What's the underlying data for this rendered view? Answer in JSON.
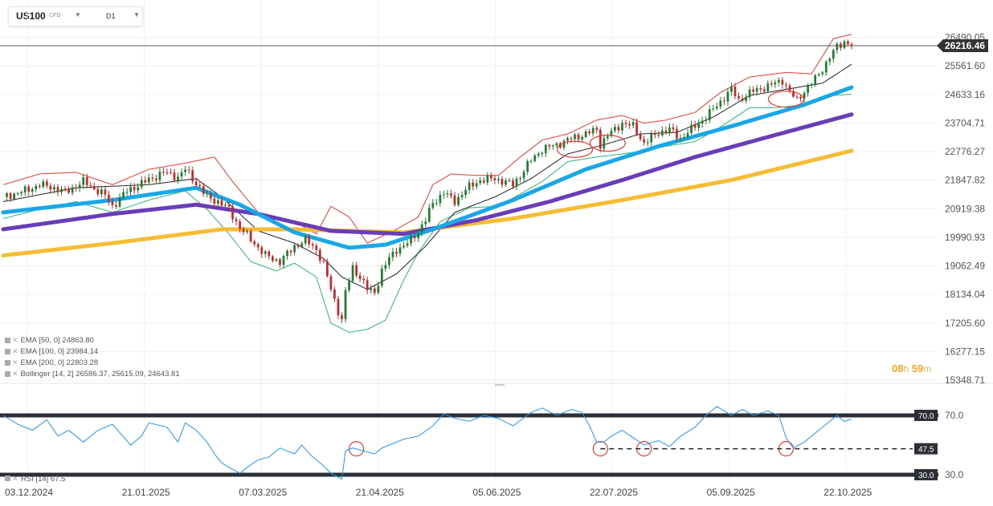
{
  "symbol": {
    "name": "US100",
    "type": "CFD",
    "timeframe": "D1"
  },
  "indicators": {
    "ema50": "EMA [50, 0] 24863.80",
    "ema100": "EMA [100, 0] 23984.14",
    "ema200": "EMA [200, 0] 22803.28",
    "bollinger": "Bollinger [14, 2] 26586.37, 25615.09, 24643.81",
    "rsi": "RSI [14] 67.5"
  },
  "countdown": {
    "hours": "08",
    "h": "h",
    "minutes": "59",
    "m": "m"
  },
  "colors": {
    "bullish": "#1e7d2e",
    "bearish": "#c62828",
    "ema50": "#1aa7e8",
    "ema100": "#6a3db8",
    "ema200": "#f6bd34",
    "bb_upper": "#e53935",
    "bb_lower": "#2bb673",
    "bb_mid": "#222222",
    "rsi": "#2196f3",
    "annotation": "#e53935",
    "price_tag": "#333333"
  },
  "chart_data": {
    "type": "candlestick",
    "xlabel": "",
    "ylabel": "",
    "ylim": [
      15348.71,
      27000
    ],
    "y_ticks": [
      "26490.05",
      "25561.60",
      "24633.16",
      "23704.71",
      "22776.27",
      "21847.82",
      "20919.38",
      "19990.93",
      "19062.49",
      "18134.04",
      "17205.60",
      "16277.15",
      "15348.71"
    ],
    "x_ticks": [
      "03.12.2024",
      "21.01.2025",
      "07.03.2025",
      "21.04.2025",
      "05.06.2025",
      "22.07.2025",
      "05.09.2025",
      "22.10.2025"
    ],
    "current_price": "26216.46",
    "close_path": [
      [
        0,
        21300
      ],
      [
        6,
        21500
      ],
      [
        10,
        21700
      ],
      [
        14,
        21600
      ],
      [
        17,
        21450
      ],
      [
        22,
        21800
      ],
      [
        28,
        21350
      ],
      [
        30,
        21000
      ],
      [
        34,
        21500
      ],
      [
        39,
        21800
      ],
      [
        44,
        22100
      ],
      [
        48,
        21950
      ],
      [
        50,
        22200
      ],
      [
        53,
        21750
      ],
      [
        56,
        21300
      ],
      [
        59,
        21150
      ],
      [
        62,
        20900
      ],
      [
        65,
        20300
      ],
      [
        69,
        19800
      ],
      [
        72,
        19400
      ],
      [
        76,
        19200
      ],
      [
        80,
        19700
      ],
      [
        83,
        19900
      ],
      [
        86,
        19600
      ],
      [
        88,
        19100
      ],
      [
        90,
        18300
      ],
      [
        92,
        17600
      ],
      [
        93,
        17300
      ],
      [
        94,
        18200
      ],
      [
        96,
        19000
      ],
      [
        98,
        18700
      ],
      [
        100,
        18300
      ],
      [
        102,
        18200
      ],
      [
        104,
        18900
      ],
      [
        106,
        19300
      ],
      [
        108,
        19600
      ],
      [
        110,
        19700
      ],
      [
        112,
        19900
      ],
      [
        114,
        20200
      ],
      [
        116,
        20550
      ],
      [
        118,
        21100
      ],
      [
        121,
        21450
      ],
      [
        124,
        21150
      ],
      [
        127,
        21550
      ],
      [
        131,
        21850
      ],
      [
        135,
        21900
      ],
      [
        140,
        21700
      ],
      [
        142,
        22000
      ],
      [
        145,
        22500
      ],
      [
        148,
        22850
      ],
      [
        152,
        23000
      ],
      [
        156,
        23200
      ],
      [
        160,
        23350
      ],
      [
        163,
        23500
      ],
      [
        164,
        23000
      ],
      [
        166,
        23300
      ],
      [
        170,
        23700
      ],
      [
        173,
        23600
      ],
      [
        176,
        23050
      ],
      [
        180,
        23400
      ],
      [
        183,
        23500
      ],
      [
        186,
        23200
      ],
      [
        190,
        23600
      ],
      [
        193,
        23900
      ],
      [
        197,
        24400
      ],
      [
        200,
        24800
      ],
      [
        202,
        24450
      ],
      [
        206,
        24750
      ],
      [
        210,
        24900
      ],
      [
        214,
        25100
      ],
      [
        216,
        24700
      ],
      [
        218,
        24450
      ],
      [
        220,
        24750
      ],
      [
        222,
        25000
      ],
      [
        224,
        25300
      ],
      [
        226,
        25650
      ],
      [
        229,
        26200
      ],
      [
        231,
        26350
      ],
      [
        233,
        26216
      ]
    ],
    "ema50_path": [
      [
        0,
        20800
      ],
      [
        30,
        21200
      ],
      [
        53,
        21600
      ],
      [
        65,
        21050
      ],
      [
        80,
        20150
      ],
      [
        95,
        19650
      ],
      [
        105,
        19750
      ],
      [
        118,
        20250
      ],
      [
        140,
        21200
      ],
      [
        160,
        22200
      ],
      [
        180,
        22950
      ],
      [
        200,
        23600
      ],
      [
        220,
        24300
      ],
      [
        233,
        24864
      ]
    ],
    "ema100_path": [
      [
        0,
        20250
      ],
      [
        30,
        20750
      ],
      [
        53,
        21050
      ],
      [
        70,
        20750
      ],
      [
        90,
        20200
      ],
      [
        110,
        20100
      ],
      [
        130,
        20550
      ],
      [
        150,
        21150
      ],
      [
        170,
        21850
      ],
      [
        190,
        22600
      ],
      [
        210,
        23250
      ],
      [
        233,
        23984
      ]
    ],
    "ema200_path": [
      [
        0,
        19400
      ],
      [
        30,
        19800
      ],
      [
        60,
        20250
      ],
      [
        80,
        20250
      ],
      [
        110,
        20150
      ],
      [
        140,
        20600
      ],
      [
        170,
        21200
      ],
      [
        200,
        21850
      ],
      [
        233,
        22803
      ]
    ],
    "bb_upper_path": [
      [
        0,
        21700
      ],
      [
        10,
        22050
      ],
      [
        20,
        22100
      ],
      [
        30,
        21700
      ],
      [
        40,
        22200
      ],
      [
        50,
        22400
      ],
      [
        58,
        22600
      ],
      [
        63,
        21800
      ],
      [
        70,
        20800
      ],
      [
        80,
        20500
      ],
      [
        86,
        20100
      ],
      [
        90,
        21000
      ],
      [
        95,
        20650
      ],
      [
        100,
        19800
      ],
      [
        108,
        20250
      ],
      [
        114,
        20650
      ],
      [
        118,
        21700
      ],
      [
        123,
        22050
      ],
      [
        130,
        22000
      ],
      [
        136,
        22000
      ],
      [
        142,
        22600
      ],
      [
        148,
        23150
      ],
      [
        155,
        23350
      ],
      [
        163,
        23800
      ],
      [
        170,
        23950
      ],
      [
        176,
        23700
      ],
      [
        182,
        23800
      ],
      [
        190,
        24050
      ],
      [
        197,
        24700
      ],
      [
        205,
        25200
      ],
      [
        215,
        25350
      ],
      [
        222,
        25300
      ],
      [
        228,
        26450
      ],
      [
        233,
        26586
      ]
    ],
    "bb_lower_path": [
      [
        0,
        20600
      ],
      [
        10,
        20900
      ],
      [
        20,
        21150
      ],
      [
        30,
        20800
      ],
      [
        40,
        21200
      ],
      [
        50,
        21500
      ],
      [
        56,
        20900
      ],
      [
        62,
        20100
      ],
      [
        68,
        19200
      ],
      [
        75,
        18900
      ],
      [
        80,
        19150
      ],
      [
        86,
        18700
      ],
      [
        90,
        17200
      ],
      [
        95,
        16900
      ],
      [
        100,
        17000
      ],
      [
        105,
        17300
      ],
      [
        110,
        18600
      ],
      [
        114,
        19500
      ],
      [
        120,
        20500
      ],
      [
        128,
        20950
      ],
      [
        136,
        21000
      ],
      [
        142,
        21400
      ],
      [
        148,
        21800
      ],
      [
        155,
        22450
      ],
      [
        163,
        22600
      ],
      [
        170,
        22700
      ],
      [
        176,
        22800
      ],
      [
        182,
        22950
      ],
      [
        190,
        23100
      ],
      [
        196,
        23500
      ],
      [
        205,
        24200
      ],
      [
        212,
        24200
      ],
      [
        220,
        24300
      ],
      [
        228,
        24600
      ],
      [
        233,
        24644
      ]
    ],
    "bb_mid_path": [
      [
        0,
        21150
      ],
      [
        20,
        21600
      ],
      [
        40,
        21700
      ],
      [
        53,
        21900
      ],
      [
        60,
        21300
      ],
      [
        70,
        20200
      ],
      [
        80,
        19800
      ],
      [
        88,
        19300
      ],
      [
        93,
        18700
      ],
      [
        100,
        18300
      ],
      [
        108,
        18800
      ],
      [
        116,
        19700
      ],
      [
        124,
        20800
      ],
      [
        135,
        21300
      ],
      [
        145,
        21900
      ],
      [
        155,
        22700
      ],
      [
        165,
        23000
      ],
      [
        175,
        23350
      ],
      [
        185,
        23400
      ],
      [
        195,
        23900
      ],
      [
        205,
        24600
      ],
      [
        215,
        24800
      ],
      [
        225,
        25000
      ],
      [
        233,
        25615
      ]
    ],
    "rsi": {
      "range": [
        30,
        80
      ],
      "levels": [
        "70.0",
        "47.5",
        "30.0"
      ],
      "path": [
        [
          0,
          70
        ],
        [
          4,
          64
        ],
        [
          8,
          60
        ],
        [
          12,
          67
        ],
        [
          15,
          56
        ],
        [
          18,
          60
        ],
        [
          22,
          52
        ],
        [
          26,
          60
        ],
        [
          30,
          64
        ],
        [
          35,
          50
        ],
        [
          38,
          56
        ],
        [
          40,
          65
        ],
        [
          45,
          62
        ],
        [
          48,
          52
        ],
        [
          50,
          65
        ],
        [
          53,
          60
        ],
        [
          56,
          52
        ],
        [
          58,
          44
        ],
        [
          60,
          38
        ],
        [
          62,
          35
        ],
        [
          65,
          31
        ],
        [
          67,
          35
        ],
        [
          70,
          40
        ],
        [
          73,
          42
        ],
        [
          76,
          48
        ],
        [
          80,
          44
        ],
        [
          82,
          50
        ],
        [
          85,
          42
        ],
        [
          88,
          36
        ],
        [
          90,
          31
        ],
        [
          93,
          27
        ],
        [
          94,
          46
        ],
        [
          96,
          48
        ],
        [
          99,
          46
        ],
        [
          102,
          44
        ],
        [
          104,
          48
        ],
        [
          106,
          50
        ],
        [
          110,
          54
        ],
        [
          114,
          56
        ],
        [
          118,
          63
        ],
        [
          121,
          71
        ],
        [
          124,
          68
        ],
        [
          128,
          66
        ],
        [
          132,
          70
        ],
        [
          136,
          68
        ],
        [
          140,
          63
        ],
        [
          145,
          72
        ],
        [
          148,
          75
        ],
        [
          152,
          70
        ],
        [
          156,
          74
        ],
        [
          159,
          72
        ],
        [
          161,
          63
        ],
        [
          163,
          52
        ],
        [
          165,
          52
        ],
        [
          167,
          56
        ],
        [
          170,
          60
        ],
        [
          173,
          55
        ],
        [
          176,
          50
        ],
        [
          180,
          53
        ],
        [
          183,
          49
        ],
        [
          186,
          56
        ],
        [
          190,
          62
        ],
        [
          193,
          70
        ],
        [
          196,
          76
        ],
        [
          200,
          70
        ],
        [
          203,
          74
        ],
        [
          206,
          70
        ],
        [
          210,
          73
        ],
        [
          213,
          70
        ],
        [
          215,
          55
        ],
        [
          217,
          48
        ],
        [
          220,
          52
        ],
        [
          222,
          56
        ],
        [
          226,
          64
        ],
        [
          229,
          70
        ],
        [
          231,
          66
        ],
        [
          233,
          67.5
        ]
      ],
      "value": "67.5"
    },
    "annotations": [
      {
        "type": "ellipse",
        "pane": "price",
        "x": 157,
        "y": 22850
      },
      {
        "type": "ellipse",
        "pane": "price",
        "x": 166,
        "y": 23050
      },
      {
        "type": "ellipse",
        "pane": "price",
        "x": 215,
        "y": 24480
      },
      {
        "type": "circle",
        "pane": "rsi",
        "x": 97,
        "y": 47.5
      },
      {
        "type": "circle",
        "pane": "rsi",
        "x": 164,
        "y": 47.5
      },
      {
        "type": "circle",
        "pane": "rsi",
        "x": 176,
        "y": 47.5
      },
      {
        "type": "circle",
        "pane": "rsi",
        "x": 215,
        "y": 47.5
      }
    ]
  }
}
